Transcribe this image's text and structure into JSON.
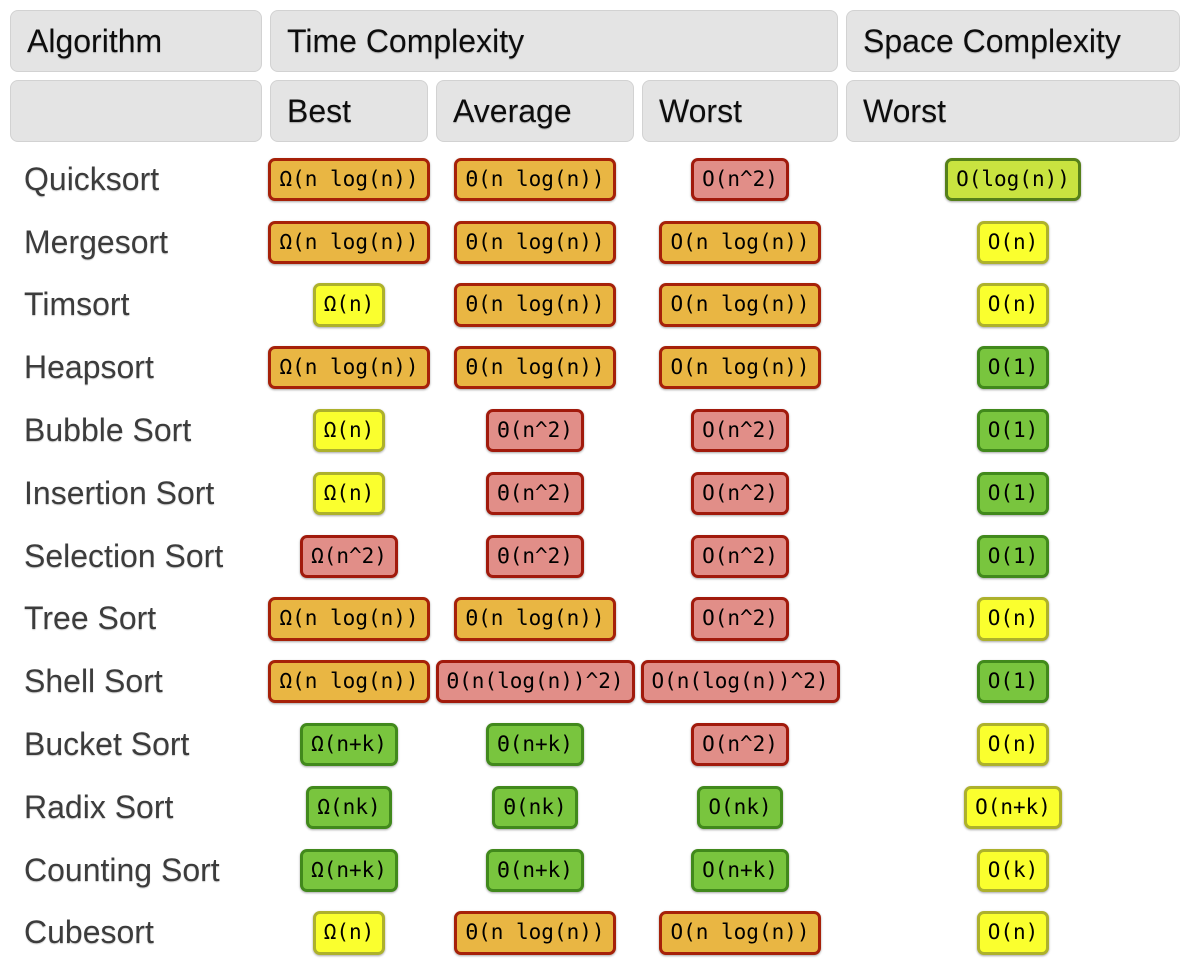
{
  "headers": {
    "algorithm": "Algorithm",
    "time_complexity": "Time Complexity",
    "space_complexity": "Space Complexity",
    "best": "Best",
    "average": "Average",
    "worst": "Worst",
    "space_worst": "Worst"
  },
  "rating_colors": {
    "orange": {
      "bg": "#e9b643",
      "border": "#a62109"
    },
    "red": {
      "bg": "#e18e88",
      "border": "#a11a0c"
    },
    "yellow": {
      "bg": "#faff2e",
      "border": "#adb12c"
    },
    "green": {
      "bg": "#79c53e",
      "border": "#41891c"
    },
    "yellowgreen": {
      "bg": "#c9e340",
      "border": "#55801a"
    }
  },
  "chart_data": {
    "type": "table",
    "column_groups": [
      "Algorithm",
      "Time Complexity",
      "Space Complexity"
    ],
    "columns": [
      "Algorithm",
      "Best",
      "Average",
      "Worst",
      "Worst (Space)"
    ],
    "rows": [
      {
        "name": "Quicksort",
        "best": {
          "text": "Ω(n log(n))",
          "rating": "orange"
        },
        "average": {
          "text": "Θ(n log(n))",
          "rating": "orange"
        },
        "worst": {
          "text": "O(n^2)",
          "rating": "red"
        },
        "space": {
          "text": "O(log(n))",
          "rating": "yellowgreen"
        }
      },
      {
        "name": "Mergesort",
        "best": {
          "text": "Ω(n log(n))",
          "rating": "orange"
        },
        "average": {
          "text": "Θ(n log(n))",
          "rating": "orange"
        },
        "worst": {
          "text": "O(n log(n))",
          "rating": "orange"
        },
        "space": {
          "text": "O(n)",
          "rating": "yellow"
        }
      },
      {
        "name": "Timsort",
        "best": {
          "text": "Ω(n)",
          "rating": "yellow"
        },
        "average": {
          "text": "Θ(n log(n))",
          "rating": "orange"
        },
        "worst": {
          "text": "O(n log(n))",
          "rating": "orange"
        },
        "space": {
          "text": "O(n)",
          "rating": "yellow"
        }
      },
      {
        "name": "Heapsort",
        "best": {
          "text": "Ω(n log(n))",
          "rating": "orange"
        },
        "average": {
          "text": "Θ(n log(n))",
          "rating": "orange"
        },
        "worst": {
          "text": "O(n log(n))",
          "rating": "orange"
        },
        "space": {
          "text": "O(1)",
          "rating": "green"
        }
      },
      {
        "name": "Bubble Sort",
        "best": {
          "text": "Ω(n)",
          "rating": "yellow"
        },
        "average": {
          "text": "Θ(n^2)",
          "rating": "red"
        },
        "worst": {
          "text": "O(n^2)",
          "rating": "red"
        },
        "space": {
          "text": "O(1)",
          "rating": "green"
        }
      },
      {
        "name": "Insertion Sort",
        "best": {
          "text": "Ω(n)",
          "rating": "yellow"
        },
        "average": {
          "text": "Θ(n^2)",
          "rating": "red"
        },
        "worst": {
          "text": "O(n^2)",
          "rating": "red"
        },
        "space": {
          "text": "O(1)",
          "rating": "green"
        }
      },
      {
        "name": "Selection Sort",
        "best": {
          "text": "Ω(n^2)",
          "rating": "red"
        },
        "average": {
          "text": "Θ(n^2)",
          "rating": "red"
        },
        "worst": {
          "text": "O(n^2)",
          "rating": "red"
        },
        "space": {
          "text": "O(1)",
          "rating": "green"
        }
      },
      {
        "name": "Tree Sort",
        "best": {
          "text": "Ω(n log(n))",
          "rating": "orange"
        },
        "average": {
          "text": "Θ(n log(n))",
          "rating": "orange"
        },
        "worst": {
          "text": "O(n^2)",
          "rating": "red"
        },
        "space": {
          "text": "O(n)",
          "rating": "yellow"
        }
      },
      {
        "name": "Shell Sort",
        "best": {
          "text": "Ω(n log(n))",
          "rating": "orange"
        },
        "average": {
          "text": "Θ(n(log(n))^2)",
          "rating": "red"
        },
        "worst": {
          "text": "O(n(log(n))^2)",
          "rating": "red"
        },
        "space": {
          "text": "O(1)",
          "rating": "green"
        }
      },
      {
        "name": "Bucket Sort",
        "best": {
          "text": "Ω(n+k)",
          "rating": "green"
        },
        "average": {
          "text": "Θ(n+k)",
          "rating": "green"
        },
        "worst": {
          "text": "O(n^2)",
          "rating": "red"
        },
        "space": {
          "text": "O(n)",
          "rating": "yellow"
        }
      },
      {
        "name": "Radix Sort",
        "best": {
          "text": "Ω(nk)",
          "rating": "green"
        },
        "average": {
          "text": "Θ(nk)",
          "rating": "green"
        },
        "worst": {
          "text": "O(nk)",
          "rating": "green"
        },
        "space": {
          "text": "O(n+k)",
          "rating": "yellow"
        }
      },
      {
        "name": "Counting Sort",
        "best": {
          "text": "Ω(n+k)",
          "rating": "green"
        },
        "average": {
          "text": "Θ(n+k)",
          "rating": "green"
        },
        "worst": {
          "text": "O(n+k)",
          "rating": "green"
        },
        "space": {
          "text": "O(k)",
          "rating": "yellow"
        }
      },
      {
        "name": "Cubesort",
        "best": {
          "text": "Ω(n)",
          "rating": "yellow"
        },
        "average": {
          "text": "Θ(n log(n))",
          "rating": "orange"
        },
        "worst": {
          "text": "O(n log(n))",
          "rating": "orange"
        },
        "space": {
          "text": "O(n)",
          "rating": "yellow"
        }
      }
    ]
  }
}
